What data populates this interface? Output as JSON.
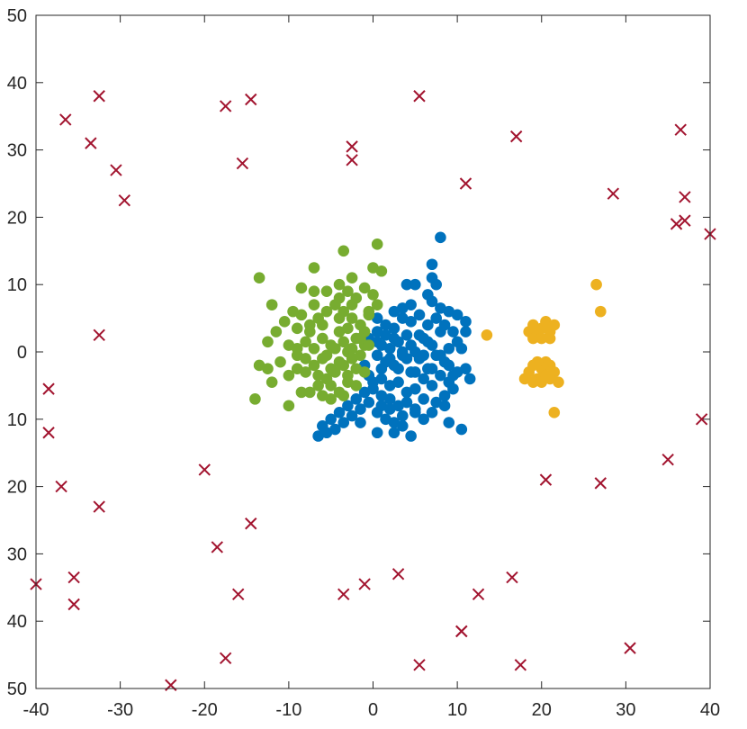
{
  "chart_data": {
    "type": "scatter",
    "title": "",
    "xlabel": "",
    "ylabel": "",
    "xlim": [
      -40,
      40
    ],
    "ylim": [
      -50,
      50
    ],
    "grid": false,
    "legend": "none",
    "x_ticks": [
      -40,
      -30,
      -20,
      -10,
      0,
      10,
      20,
      30,
      40
    ],
    "y_ticks": [
      50,
      40,
      30,
      20,
      10,
      0,
      -10,
      -20,
      -30,
      -40,
      -50
    ],
    "x_tick_labels": [
      "-40",
      "-30",
      "-20",
      "-10",
      "0",
      "10",
      "20",
      "30",
      "40"
    ],
    "y_tick_labels": [
      "50",
      "40",
      "30",
      "20",
      "10",
      "0",
      "10",
      "20",
      "30",
      "40",
      "50"
    ],
    "series": [
      {
        "marker": "circle",
        "color": "#0072BD",
        "points": [
          [
            0.5,
            -0.5
          ],
          [
            1.0,
            1.0
          ],
          [
            1.5,
            -1.5
          ],
          [
            2.0,
            0.5
          ],
          [
            2.5,
            -2.0
          ],
          [
            3.0,
            1.5
          ],
          [
            3.5,
            -0.5
          ],
          [
            4.0,
            2.5
          ],
          [
            4.5,
            -3.0
          ],
          [
            5.0,
            0.0
          ],
          [
            5.5,
            -1.0
          ],
          [
            6.0,
            2.0
          ],
          [
            6.5,
            -2.5
          ],
          [
            7.0,
            1.0
          ],
          [
            7.5,
            -0.5
          ],
          [
            8.0,
            3.0
          ],
          [
            8.5,
            -1.5
          ],
          [
            9.0,
            0.5
          ],
          [
            9.5,
            -3.5
          ],
          [
            10.0,
            1.5
          ],
          [
            1.0,
            -4.0
          ],
          [
            2.0,
            -5.0
          ],
          [
            3.0,
            -4.5
          ],
          [
            4.0,
            -6.0
          ],
          [
            5.0,
            -5.5
          ],
          [
            6.0,
            -4.0
          ],
          [
            7.0,
            -5.0
          ],
          [
            8.0,
            -3.5
          ],
          [
            9.0,
            -4.5
          ],
          [
            10.0,
            -3.0
          ],
          [
            0.5,
            3.0
          ],
          [
            1.5,
            4.0
          ],
          [
            2.5,
            3.5
          ],
          [
            3.5,
            5.0
          ],
          [
            4.5,
            4.5
          ],
          [
            5.5,
            5.5
          ],
          [
            6.5,
            4.0
          ],
          [
            7.5,
            5.0
          ],
          [
            8.5,
            4.0
          ],
          [
            9.5,
            3.0
          ],
          [
            2.0,
            -7.0
          ],
          [
            3.0,
            -8.0
          ],
          [
            4.0,
            -7.5
          ],
          [
            5.0,
            -8.5
          ],
          [
            6.0,
            -7.0
          ],
          [
            1.0,
            -6.5
          ],
          [
            0.0,
            -5.5
          ],
          [
            -1.0,
            -6.0
          ],
          [
            -2.0,
            -7.0
          ],
          [
            -3.0,
            -8.0
          ],
          [
            -4.0,
            -9.0
          ],
          [
            -5.0,
            -10.0
          ],
          [
            -6.0,
            -11.0
          ],
          [
            -6.5,
            -12.5
          ],
          [
            -5.5,
            -12.0
          ],
          [
            -4.5,
            -11.5
          ],
          [
            -3.5,
            -10.5
          ],
          [
            -2.5,
            -9.5
          ],
          [
            -1.5,
            -8.5
          ],
          [
            -0.5,
            -7.5
          ],
          [
            0.5,
            -9.0
          ],
          [
            1.5,
            -10.0
          ],
          [
            2.5,
            -10.5
          ],
          [
            3.5,
            -11.0
          ],
          [
            4.5,
            -12.5
          ],
          [
            0.5,
            -12.0
          ],
          [
            2.5,
            -12.0
          ],
          [
            7.0,
            -9.0
          ],
          [
            9.0,
            -10.5
          ],
          [
            10.5,
            -11.5
          ],
          [
            11.5,
            -4.0
          ],
          [
            11.0,
            -2.5
          ],
          [
            10.5,
            0.5
          ],
          [
            11.0,
            3.0
          ],
          [
            11.0,
            4.5
          ],
          [
            10.0,
            5.5
          ],
          [
            9.0,
            6.0
          ],
          [
            8.0,
            6.5
          ],
          [
            7.0,
            7.5
          ],
          [
            6.5,
            8.5
          ],
          [
            7.5,
            10.0
          ],
          [
            7.0,
            11.0
          ],
          [
            7.0,
            13.0
          ],
          [
            8.0,
            17.0
          ],
          [
            5.0,
            10.0
          ],
          [
            4.0,
            10.0
          ],
          [
            4.5,
            7.0
          ],
          [
            3.5,
            6.5
          ],
          [
            2.5,
            6.0
          ],
          [
            0.5,
            5.0
          ],
          [
            -0.5,
            2.0
          ],
          [
            -1.0,
            -2.0
          ],
          [
            -0.5,
            -3.5
          ],
          [
            0.0,
            -4.5
          ],
          [
            1.0,
            -2.5
          ],
          [
            2.0,
            -1.0
          ],
          [
            3.0,
            -2.5
          ],
          [
            4.0,
            -1.0
          ],
          [
            5.0,
            -3.0
          ],
          [
            6.0,
            -0.5
          ],
          [
            7.0,
            -2.5
          ],
          [
            8.0,
            -0.5
          ],
          [
            9.0,
            -2.0
          ],
          [
            6.5,
            1.5
          ],
          [
            5.5,
            2.5
          ],
          [
            4.5,
            1.0
          ],
          [
            3.5,
            0.0
          ],
          [
            2.5,
            2.0
          ],
          [
            1.5,
            2.5
          ],
          [
            0.5,
            1.5
          ],
          [
            1.0,
            -8.0
          ],
          [
            2.0,
            -8.5
          ],
          [
            3.5,
            -9.5
          ],
          [
            5.0,
            -9.0
          ],
          [
            6.0,
            -10.0
          ],
          [
            7.5,
            -7.5
          ],
          [
            8.5,
            -6.5
          ],
          [
            9.5,
            -5.5
          ],
          [
            8.5,
            -8.0
          ],
          [
            -1.5,
            -10.5
          ]
        ]
      },
      {
        "marker": "circle",
        "color": "#77AC30",
        "points": [
          [
            -1.0,
            1.0
          ],
          [
            -2.0,
            2.0
          ],
          [
            -3.0,
            0.0
          ],
          [
            -4.0,
            3.0
          ],
          [
            -5.0,
            1.0
          ],
          [
            -6.0,
            2.0
          ],
          [
            -7.0,
            0.5
          ],
          [
            -8.0,
            1.5
          ],
          [
            -9.0,
            -0.5
          ],
          [
            -10.0,
            1.0
          ],
          [
            -2.5,
            -1.0
          ],
          [
            -3.5,
            -2.0
          ],
          [
            -4.5,
            -3.0
          ],
          [
            -5.5,
            -4.0
          ],
          [
            -6.5,
            -5.0
          ],
          [
            -7.5,
            -6.0
          ],
          [
            -3.0,
            -4.5
          ],
          [
            -4.0,
            -6.0
          ],
          [
            -5.0,
            -7.0
          ],
          [
            -6.0,
            -6.5
          ],
          [
            -1.5,
            4.0
          ],
          [
            -2.5,
            5.0
          ],
          [
            -3.5,
            6.0
          ],
          [
            -4.5,
            7.0
          ],
          [
            -5.5,
            6.0
          ],
          [
            -6.5,
            5.0
          ],
          [
            -7.5,
            4.0
          ],
          [
            -8.5,
            5.5
          ],
          [
            -9.5,
            6.0
          ],
          [
            -10.5,
            4.5
          ],
          [
            -2.0,
            8.0
          ],
          [
            -3.0,
            9.0
          ],
          [
            -4.0,
            10.0
          ],
          [
            -2.5,
            11.0
          ],
          [
            -1.0,
            9.5
          ],
          [
            0.0,
            8.5
          ],
          [
            0.5,
            7.0
          ],
          [
            -0.5,
            6.0
          ],
          [
            0.0,
            12.5
          ],
          [
            1.0,
            12.0
          ],
          [
            -3.5,
            15.0
          ],
          [
            0.5,
            16.0
          ],
          [
            -7.0,
            12.5
          ],
          [
            -8.5,
            9.5
          ],
          [
            -7.0,
            9.0
          ],
          [
            -12.0,
            7.0
          ],
          [
            -13.5,
            11.0
          ],
          [
            -11.0,
            -1.5
          ],
          [
            -12.5,
            -2.5
          ],
          [
            -13.5,
            -2.0
          ],
          [
            -12.0,
            -4.5
          ],
          [
            -14.0,
            -7.0
          ],
          [
            -10.0,
            -8.0
          ],
          [
            -8.5,
            -6.0
          ],
          [
            -9.0,
            -2.5
          ],
          [
            -10.0,
            -3.5
          ],
          [
            -11.5,
            3.0
          ],
          [
            -12.5,
            1.5
          ],
          [
            -9.0,
            3.5
          ],
          [
            -7.0,
            7.0
          ],
          [
            -5.5,
            9.0
          ],
          [
            -4.0,
            8.0
          ],
          [
            -1.0,
            3.0
          ],
          [
            -0.5,
            1.0
          ],
          [
            -1.5,
            -0.5
          ],
          [
            -2.0,
            -2.5
          ],
          [
            -3.0,
            -3.5
          ],
          [
            -4.0,
            -1.5
          ],
          [
            -5.0,
            -2.5
          ],
          [
            -6.0,
            -1.0
          ],
          [
            -7.0,
            -2.0
          ],
          [
            -8.0,
            -3.0
          ],
          [
            -1.0,
            -3.0
          ],
          [
            -2.0,
            -5.0
          ],
          [
            -0.5,
            5.5
          ],
          [
            -2.5,
            7.0
          ],
          [
            -6.0,
            4.0
          ],
          [
            -7.5,
            3.0
          ],
          [
            -4.0,
            5.0
          ],
          [
            -3.0,
            3.5
          ],
          [
            -5.5,
            -0.5
          ],
          [
            -4.5,
            0.5
          ],
          [
            -3.5,
            1.5
          ],
          [
            -2.5,
            0.5
          ],
          [
            -1.5,
            2.0
          ],
          [
            -8.0,
            -1.0
          ],
          [
            -9.0,
            0.5
          ],
          [
            -6.5,
            -3.5
          ],
          [
            -5.0,
            -5.0
          ],
          [
            -3.5,
            -6.5
          ]
        ]
      },
      {
        "marker": "circle",
        "color": "#EDB120",
        "points": [
          [
            18.5,
            3.0
          ],
          [
            19.0,
            4.0
          ],
          [
            19.5,
            2.5
          ],
          [
            20.0,
            3.5
          ],
          [
            20.5,
            4.5
          ],
          [
            21.0,
            3.0
          ],
          [
            21.5,
            4.0
          ],
          [
            19.0,
            2.0
          ],
          [
            20.0,
            2.0
          ],
          [
            21.0,
            2.0
          ],
          [
            18.5,
            -3.0
          ],
          [
            19.0,
            -2.0
          ],
          [
            19.5,
            -4.0
          ],
          [
            20.0,
            -2.5
          ],
          [
            20.5,
            -3.5
          ],
          [
            21.0,
            -2.0
          ],
          [
            21.5,
            -3.0
          ],
          [
            19.0,
            -4.5
          ],
          [
            20.0,
            -4.5
          ],
          [
            21.0,
            -4.0
          ],
          [
            18.0,
            -4.0
          ],
          [
            22.0,
            -4.5
          ],
          [
            20.5,
            -1.5
          ],
          [
            19.5,
            -1.5
          ],
          [
            13.5,
            2.5
          ],
          [
            26.5,
            10.0
          ],
          [
            27.0,
            6.0
          ],
          [
            21.5,
            -9.0
          ]
        ]
      },
      {
        "marker": "x",
        "color": "#A2142F",
        "points": [
          [
            -36.5,
            34.5
          ],
          [
            -32.5,
            38.0
          ],
          [
            -33.5,
            31.0
          ],
          [
            -30.5,
            27.0
          ],
          [
            -29.5,
            22.5
          ],
          [
            -17.5,
            36.5
          ],
          [
            -14.5,
            37.5
          ],
          [
            -15.5,
            28.0
          ],
          [
            -2.5,
            30.5
          ],
          [
            -2.5,
            28.5
          ],
          [
            5.5,
            38.0
          ],
          [
            11.0,
            25.0
          ],
          [
            17.0,
            32.0
          ],
          [
            28.5,
            23.5
          ],
          [
            36.5,
            33.0
          ],
          [
            37.0,
            23.0
          ],
          [
            36.0,
            19.0
          ],
          [
            37.0,
            19.5
          ],
          [
            40.0,
            17.5
          ],
          [
            -32.5,
            2.5
          ],
          [
            -38.5,
            -5.5
          ],
          [
            -38.5,
            -12.0
          ],
          [
            -37.0,
            -20.0
          ],
          [
            -32.5,
            -23.0
          ],
          [
            -20.0,
            -17.5
          ],
          [
            -14.5,
            -25.5
          ],
          [
            -18.5,
            -29.0
          ],
          [
            -35.5,
            -33.5
          ],
          [
            -35.5,
            -37.5
          ],
          [
            -40.0,
            -34.5
          ],
          [
            -16.0,
            -36.0
          ],
          [
            -17.5,
            -45.5
          ],
          [
            -24.0,
            -49.5
          ],
          [
            -3.5,
            -36.0
          ],
          [
            -1.0,
            -34.5
          ],
          [
            3.0,
            -33.0
          ],
          [
            5.5,
            -46.5
          ],
          [
            10.5,
            -41.5
          ],
          [
            10.5,
            -41.5
          ],
          [
            12.5,
            -36.0
          ],
          [
            17.5,
            -46.5
          ],
          [
            16.5,
            -33.5
          ],
          [
            20.5,
            -19.0
          ],
          [
            27.0,
            -19.5
          ],
          [
            35.0,
            -16.0
          ],
          [
            39.0,
            -10.0
          ],
          [
            30.5,
            -44.0
          ]
        ]
      }
    ]
  }
}
